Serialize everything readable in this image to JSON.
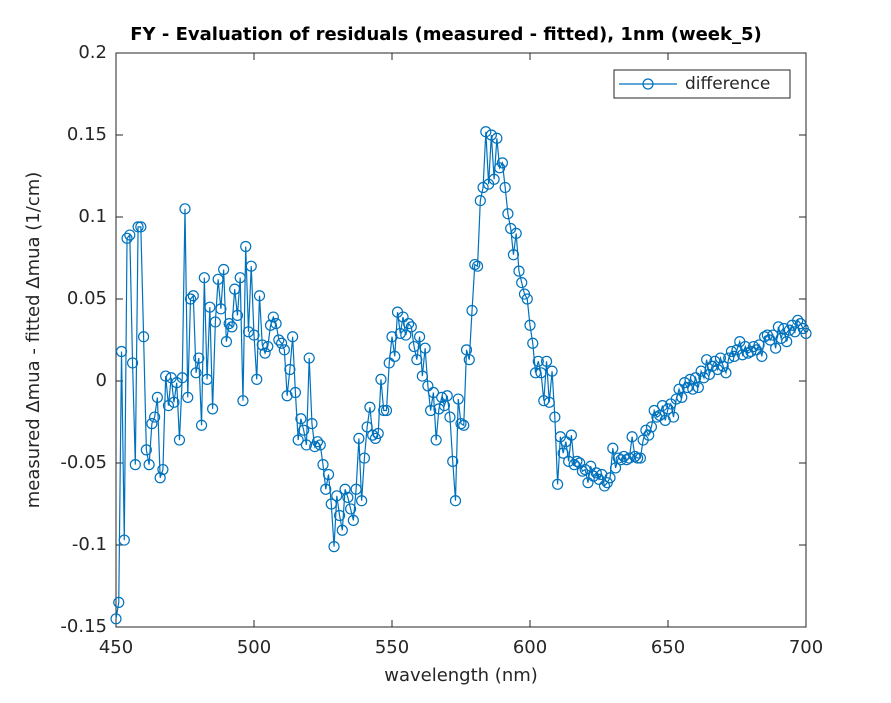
{
  "chart_data": {
    "type": "line",
    "title": "FY - Evaluation of residuals (measured - fitted), 1nm (week_5)",
    "x_label": "wavelength (nm)",
    "y_label": "measured Δmua - fitted Δmua (1/cm)",
    "legend_position": "upper right",
    "x": [
      450,
      451,
      452,
      453,
      454,
      455,
      456,
      457,
      458,
      459,
      460,
      461,
      462,
      463,
      464,
      465,
      466,
      467,
      468,
      469,
      470,
      471,
      472,
      473,
      474,
      475,
      476,
      477,
      478,
      479,
      480,
      481,
      482,
      483,
      484,
      485,
      486,
      487,
      488,
      489,
      490,
      491,
      492,
      493,
      494,
      495,
      496,
      497,
      498,
      499,
      500,
      501,
      502,
      503,
      504,
      505,
      506,
      507,
      508,
      509,
      510,
      511,
      512,
      513,
      514,
      515,
      516,
      517,
      518,
      519,
      520,
      521,
      522,
      523,
      524,
      525,
      526,
      527,
      528,
      529,
      530,
      531,
      532,
      533,
      534,
      535,
      536,
      537,
      538,
      539,
      540,
      541,
      542,
      543,
      544,
      545,
      546,
      547,
      548,
      549,
      550,
      551,
      552,
      553,
      554,
      555,
      556,
      557,
      558,
      559,
      560,
      561,
      562,
      563,
      564,
      565,
      566,
      567,
      568,
      569,
      570,
      571,
      572,
      573,
      574,
      575,
      576,
      577,
      578,
      579,
      580,
      581,
      582,
      583,
      584,
      585,
      586,
      587,
      588,
      589,
      590,
      591,
      592,
      593,
      594,
      595,
      596,
      597,
      598,
      599,
      600,
      601,
      602,
      603,
      604,
      605,
      606,
      607,
      608,
      609,
      610,
      611,
      612,
      613,
      614,
      615,
      616,
      617,
      618,
      619,
      620,
      621,
      622,
      623,
      624,
      625,
      626,
      627,
      628,
      629,
      630,
      631,
      632,
      633,
      634,
      635,
      636,
      637,
      638,
      639,
      640,
      641,
      642,
      643,
      644,
      645,
      646,
      647,
      648,
      649,
      650,
      651,
      652,
      653,
      654,
      655,
      656,
      657,
      658,
      659,
      660,
      661,
      662,
      663,
      664,
      665,
      666,
      667,
      668,
      669,
      670,
      671,
      672,
      673,
      674,
      675,
      676,
      677,
      678,
      679,
      680,
      681,
      682,
      683,
      684,
      685,
      686,
      687,
      688,
      689,
      690,
      691,
      692,
      693,
      694,
      695,
      696,
      697,
      698,
      699,
      700
    ],
    "series": [
      {
        "name": "difference",
        "color": "#0072bd",
        "marker": "circle",
        "values": [
          -0.145,
          -0.135,
          0.018,
          -0.097,
          0.087,
          0.089,
          0.011,
          -0.051,
          0.094,
          0.094,
          0.027,
          -0.042,
          -0.051,
          -0.026,
          -0.022,
          -0.01,
          -0.059,
          -0.054,
          0.003,
          -0.015,
          0.002,
          -0.013,
          -0.001,
          -0.036,
          0.002,
          0.105,
          -0.01,
          0.05,
          0.052,
          0.005,
          0.014,
          -0.027,
          0.063,
          0.001,
          0.045,
          -0.017,
          0.036,
          0.062,
          0.044,
          0.068,
          0.024,
          0.035,
          0.033,
          0.056,
          0.04,
          0.063,
          -0.012,
          0.082,
          0.03,
          0.07,
          0.028,
          0.001,
          0.052,
          0.022,
          0.017,
          0.021,
          0.034,
          0.039,
          0.035,
          0.025,
          0.023,
          0.019,
          -0.009,
          0.007,
          0.027,
          -0.007,
          -0.036,
          -0.023,
          -0.03,
          -0.039,
          0.014,
          -0.026,
          -0.04,
          -0.037,
          -0.039,
          -0.051,
          -0.066,
          -0.057,
          -0.075,
          -0.101,
          -0.07,
          -0.082,
          -0.091,
          -0.066,
          -0.071,
          -0.078,
          -0.085,
          -0.066,
          -0.035,
          -0.073,
          -0.047,
          -0.028,
          -0.016,
          -0.033,
          -0.035,
          -0.032,
          0.001,
          -0.018,
          -0.018,
          0.011,
          0.027,
          0.015,
          0.042,
          0.029,
          0.039,
          0.028,
          0.035,
          0.033,
          0.021,
          0.013,
          0.027,
          0.003,
          0.02,
          -0.003,
          -0.018,
          -0.007,
          -0.036,
          -0.017,
          -0.01,
          -0.015,
          -0.009,
          -0.022,
          -0.049,
          -0.073,
          -0.011,
          -0.026,
          -0.027,
          0.019,
          0.013,
          0.043,
          0.071,
          0.07,
          0.11,
          0.118,
          0.152,
          0.12,
          0.15,
          0.123,
          0.148,
          0.13,
          0.133,
          0.118,
          0.102,
          0.093,
          0.077,
          0.09,
          0.067,
          0.06,
          0.053,
          0.05,
          0.034,
          0.023,
          0.005,
          0.012,
          0.005,
          -0.012,
          0.012,
          -0.013,
          0.006,
          -0.022,
          -0.063,
          -0.034,
          -0.044,
          -0.037,
          -0.049,
          -0.033,
          -0.051,
          -0.049,
          -0.05,
          -0.055,
          -0.054,
          -0.062,
          -0.052,
          -0.058,
          -0.056,
          -0.06,
          -0.057,
          -0.064,
          -0.062,
          -0.059,
          -0.041,
          -0.053,
          -0.047,
          -0.048,
          -0.046,
          -0.048,
          -0.047,
          -0.034,
          -0.046,
          -0.047,
          -0.047,
          -0.036,
          -0.03,
          -0.033,
          -0.028,
          -0.018,
          -0.022,
          -0.021,
          -0.015,
          -0.024,
          -0.017,
          -0.014,
          -0.022,
          -0.011,
          -0.005,
          -0.01,
          -0.001,
          -0.004,
          0.001,
          -0.005,
          0.002,
          -0.004,
          0.006,
          0.002,
          0.013,
          0.004,
          0.009,
          0.012,
          0.007,
          0.014,
          0.009,
          0.005,
          0.014,
          0.018,
          0.015,
          0.019,
          0.024,
          0.016,
          0.021,
          0.017,
          0.018,
          0.021,
          0.019,
          0.022,
          0.015,
          0.027,
          0.028,
          0.025,
          0.028,
          0.02,
          0.033,
          0.026,
          0.032,
          0.024,
          0.031,
          0.034,
          0.03,
          0.037,
          0.035,
          0.032,
          0.029
        ]
      }
    ],
    "xlim": [
      450,
      700
    ],
    "xticks": [
      450,
      500,
      550,
      600,
      650,
      700
    ],
    "ylim": [
      -0.15,
      0.2
    ],
    "yticks": [
      -0.15,
      -0.1,
      -0.05,
      0,
      0.05,
      0.1,
      0.15,
      0.2
    ]
  }
}
